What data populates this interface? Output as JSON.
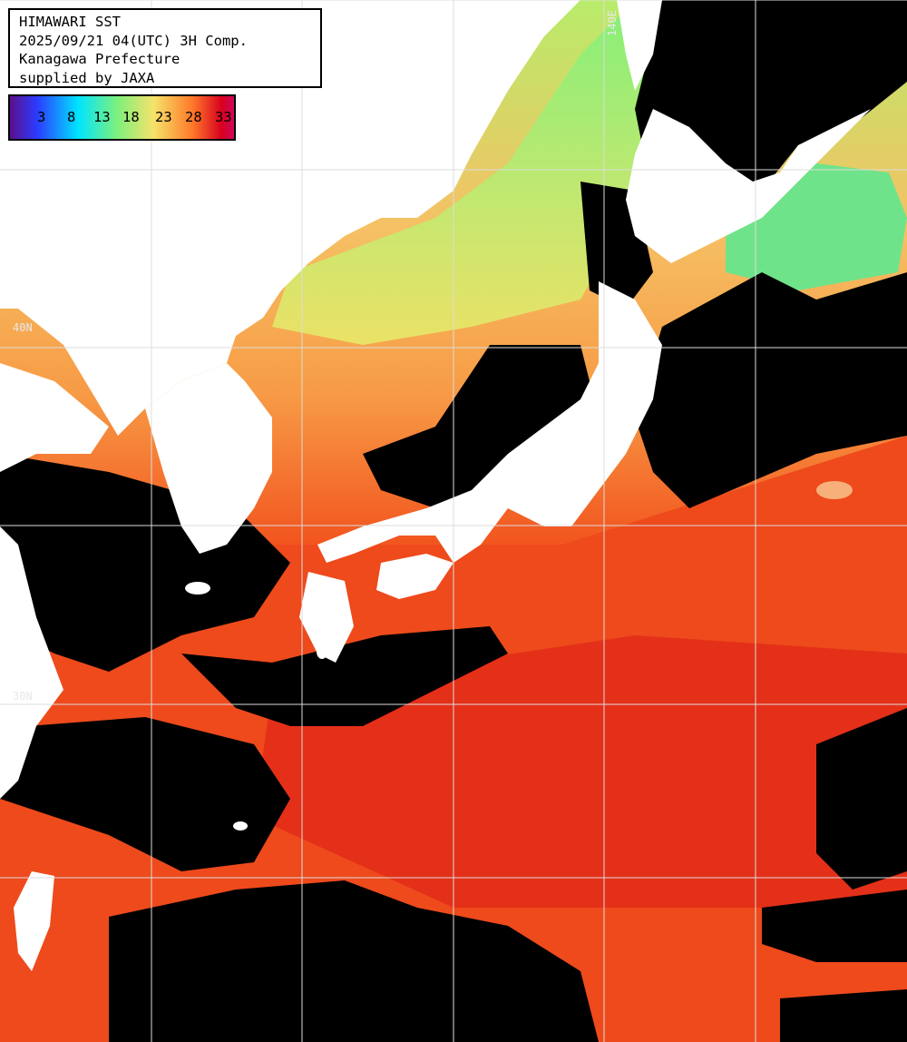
{
  "info": {
    "line1": "HIMAWARI SST",
    "line2": "2025/09/21 04(UTC) 3H Comp.",
    "line3": "Kanagawa Prefecture",
    "line4": "supplied by JAXA"
  },
  "legend": {
    "ticks": [
      "3",
      "8",
      "13",
      "18",
      "23",
      "28",
      "33"
    ],
    "colors": [
      "#5b0f8c",
      "#2b3cff",
      "#00e5ff",
      "#7cf07c",
      "#f5e36a",
      "#ff7a2a",
      "#d8001e",
      "#cc0a6c"
    ]
  },
  "grid_labels": {
    "lat_top": "40N",
    "lat_mid": "30N",
    "lon_top": "140E"
  },
  "colors": {
    "land": "#ffffff",
    "cloud": "#000000",
    "warm_sea": "#f24a1c",
    "hot_sea": "#e02814",
    "mild_sea": "#f7a04a",
    "cool_sea": "#c8e86a",
    "cold_sea": "#6ff08a",
    "grid": "#dcdcdc"
  }
}
